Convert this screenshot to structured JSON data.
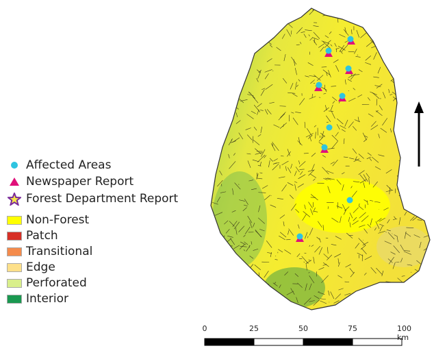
{
  "legend": {
    "points": [
      {
        "label": "Affected Areas",
        "symbol": "circle",
        "color": "#2ec4e0"
      },
      {
        "label": "Newspaper Report",
        "symbol": "triangle",
        "color": "#e0107a"
      },
      {
        "label": "Forest Department Report",
        "symbol": "star",
        "color": "#7a2a9a"
      }
    ],
    "classes": [
      {
        "label": "Non-Forest",
        "color": "#ffff00"
      },
      {
        "label": "Patch",
        "color": "#d73027"
      },
      {
        "label": "Transitional",
        "color": "#f48b4c"
      },
      {
        "label": "Edge",
        "color": "#fde08a"
      },
      {
        "label": "Perforated",
        "color": "#d9ef8b"
      },
      {
        "label": "Interior",
        "color": "#1a9850"
      }
    ]
  },
  "scale_bar": {
    "ticks": [
      "0",
      "25",
      "50",
      "75",
      "100 km"
    ]
  },
  "north_arrow": "north-arrow-icon"
}
